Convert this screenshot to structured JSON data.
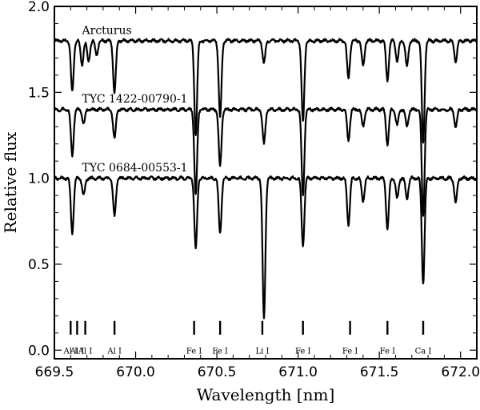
{
  "chart_data": {
    "type": "line",
    "title": "",
    "xlabel": "Wavelength [nm]",
    "ylabel": "Relative flux",
    "xlim": [
      669.5,
      672.1
    ],
    "ylim": [
      -0.05,
      2.0
    ],
    "xticks": [
      669.5,
      670.0,
      670.5,
      671.0,
      671.5,
      672.0
    ],
    "xtick_labels": [
      "669.5",
      "670.0",
      "670.5",
      "671.0",
      "671.5",
      "672.0"
    ],
    "yticks": [
      0.0,
      0.5,
      1.0,
      1.5,
      2.0
    ],
    "ytick_labels": [
      "0.0",
      "0.5",
      "1.0",
      "1.5",
      "2.0"
    ],
    "grid": false,
    "legend": "none",
    "series": [
      {
        "name": "Arcturus",
        "continuum": 1.8,
        "label_x": 669.67,
        "label_y": 1.84,
        "lines": [
          [
            669.61,
            0.3
          ],
          [
            669.67,
            0.14
          ],
          [
            669.71,
            0.12
          ],
          [
            669.76,
            0.08
          ],
          [
            669.87,
            0.3
          ],
          [
            670.37,
            0.55
          ],
          [
            670.52,
            0.45
          ],
          [
            670.79,
            0.13
          ],
          [
            671.03,
            0.47
          ],
          [
            671.31,
            0.22
          ],
          [
            671.4,
            0.15
          ],
          [
            671.55,
            0.23
          ],
          [
            671.61,
            0.12
          ],
          [
            671.67,
            0.15
          ],
          [
            671.77,
            0.6
          ],
          [
            671.97,
            0.12
          ]
        ]
      },
      {
        "name": "TYC 1422-00790-1",
        "continuum": 1.4,
        "label_x": 669.67,
        "label_y": 1.44,
        "lines": [
          [
            669.61,
            0.27
          ],
          [
            669.68,
            0.08
          ],
          [
            669.87,
            0.17
          ],
          [
            670.37,
            0.5
          ],
          [
            670.52,
            0.33
          ],
          [
            670.79,
            0.2
          ],
          [
            671.03,
            0.5
          ],
          [
            671.31,
            0.18
          ],
          [
            671.4,
            0.1
          ],
          [
            671.55,
            0.2
          ],
          [
            671.61,
            0.09
          ],
          [
            671.67,
            0.1
          ],
          [
            671.77,
            0.62
          ],
          [
            671.97,
            0.1
          ]
        ]
      },
      {
        "name": "TYC 0684-00553-1",
        "continuum": 1.0,
        "label_x": 669.67,
        "label_y": 1.04,
        "lines": [
          [
            669.61,
            0.32
          ],
          [
            669.68,
            0.1
          ],
          [
            669.87,
            0.22
          ],
          [
            670.37,
            0.41
          ],
          [
            670.52,
            0.32
          ],
          [
            670.79,
            0.82
          ],
          [
            671.03,
            0.39
          ],
          [
            671.31,
            0.27
          ],
          [
            671.4,
            0.13
          ],
          [
            671.55,
            0.29
          ],
          [
            671.61,
            0.12
          ],
          [
            671.67,
            0.12
          ],
          [
            671.77,
            0.61
          ],
          [
            671.97,
            0.14
          ]
        ]
      }
    ],
    "line_ids": [
      {
        "label": "Al I",
        "x": 669.6
      },
      {
        "label": "Al I",
        "x": 669.64
      },
      {
        "label": "Al I",
        "x": 669.69
      },
      {
        "label": "Al I",
        "x": 669.87
      },
      {
        "label": "Fe I",
        "x": 670.36
      },
      {
        "label": "Fe I",
        "x": 670.52
      },
      {
        "label": "Li I",
        "x": 670.78
      },
      {
        "label": "Fe I",
        "x": 671.03
      },
      {
        "label": "Fe I",
        "x": 671.32
      },
      {
        "label": "Fe I",
        "x": 671.55
      },
      {
        "label": "Ca I",
        "x": 671.77
      }
    ]
  }
}
